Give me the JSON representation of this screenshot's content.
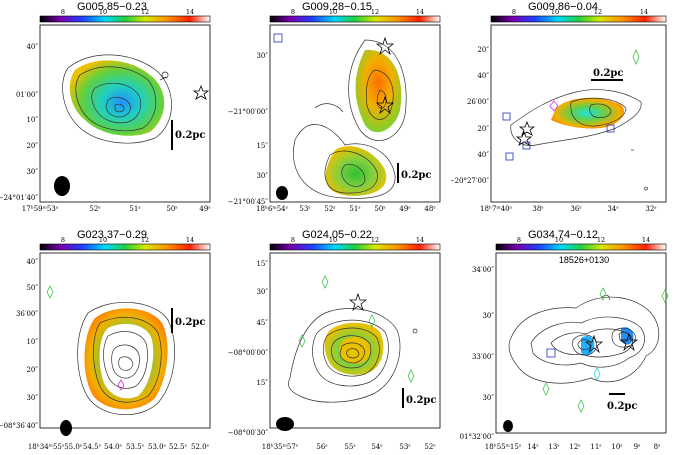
{
  "colorbar": {
    "ticks": [
      "8",
      "10",
      "12",
      "14"
    ],
    "stops": [
      "#000000",
      "#7a00b0",
      "#2040ff",
      "#00d8ff",
      "#20d040",
      "#d8e800",
      "#ff9000",
      "#ff2000",
      "#ffffff"
    ]
  },
  "panels": [
    {
      "title": "G005.85−0.23",
      "scalebar": "0.2pc",
      "ra_ticks": [
        "17ʰ59ᵐ53ˢ",
        "52ˢ",
        "51ˢ",
        "50ˢ",
        "49ˢ"
      ],
      "dec_ticks": [
        "40″",
        "01′00″",
        "10″",
        "20″",
        "30″",
        "−24°01′40″"
      ]
    },
    {
      "title": "G009.28−0.15",
      "scalebar": "0.2pc",
      "ra_ticks": [
        "18ʰ6ᵐ54ˢ",
        "53ˢ",
        "52ˢ",
        "51ˢ",
        "50ˢ",
        "49ˢ",
        "48ˢ"
      ],
      "dec_ticks": [
        "30″",
        "−21°00′00″",
        "15″",
        "30″",
        "−21°00′45″"
      ]
    },
    {
      "title": "G009.86−0.04",
      "scalebar": "0.2pc",
      "ra_ticks": [
        "18ʰ7ᵐ40ˢ",
        "38ˢ",
        "36ˢ",
        "34ˢ",
        "32ˢ"
      ],
      "dec_ticks": [
        "20″",
        "40″",
        "26′00″",
        "20″",
        "40″",
        "−20°27′00″"
      ]
    },
    {
      "title": "G023.37−0.29",
      "scalebar": "0.2pc",
      "ra_ticks": [
        "18ʰ34ᵐ55ˢ55.0ˢ",
        "54.5ˢ",
        "54.0ˢ",
        "53.5ˢ",
        "53.0ˢ",
        "52.5ˢ",
        "52.0ˢ"
      ],
      "dec_ticks": [
        "40″",
        "50″",
        "36′00″",
        "10″",
        "20″",
        "30″",
        "−08°36′40″"
      ]
    },
    {
      "title": "G024.05−0.22",
      "scalebar": "0.2pc",
      "ra_ticks": [
        "18ʰ35ᵐ57ˢ",
        "56ˢ",
        "55ˢ",
        "54ˢ",
        "53ˢ",
        "52ˢ"
      ],
      "dec_ticks": [
        "15″",
        "30″",
        "45″",
        "−08°00′00″",
        "15″",
        "−08°00′30″"
      ]
    },
    {
      "title": "G034.74−0.12",
      "subtitle": "18526+0130",
      "scalebar": "0.2pc",
      "ra_ticks": [
        "18ʰ55ᵐ15ˢ",
        "14ˢ",
        "13ˢ",
        "12ˢ",
        "11ˢ",
        "10ˢ",
        "9ˢ",
        "8ˢ"
      ],
      "dec_ticks": [
        "34′00″",
        "30″",
        "33′00″",
        "30″",
        "01°32′00″"
      ]
    }
  ]
}
